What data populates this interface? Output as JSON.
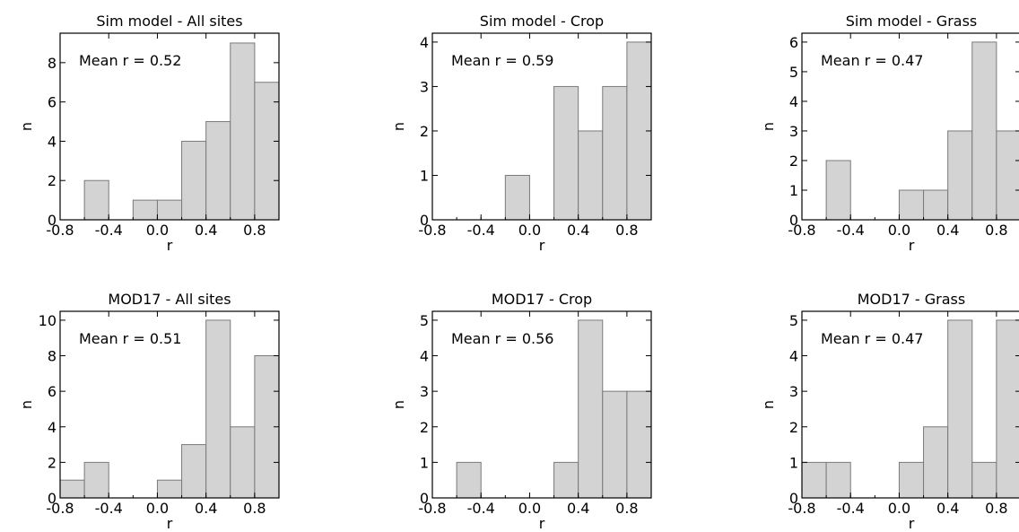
{
  "chart_data": [
    {
      "type": "bar",
      "title": "Sim model - All sites",
      "annotation": "Mean r = 0.52",
      "xlabel": "r",
      "ylabel": "n",
      "xlim": [
        -0.8,
        1.0
      ],
      "ylim": [
        0,
        9.5
      ],
      "xticks": [
        "-0.8",
        "-0.4",
        "0.0",
        "0.4",
        "0.8"
      ],
      "yticks": [
        "0",
        "2",
        "4",
        "6",
        "8"
      ],
      "bin_edges": [
        -0.8,
        -0.6,
        -0.4,
        -0.2,
        0.0,
        0.2,
        0.4,
        0.6,
        0.8,
        1.0
      ],
      "values": [
        0,
        2,
        0,
        1,
        1,
        4,
        5,
        9,
        7
      ],
      "bar_color": "#d3d3d3"
    },
    {
      "type": "bar",
      "title": "Sim model - Crop",
      "annotation": "Mean r = 0.59",
      "xlabel": "r",
      "ylabel": "n",
      "xlim": [
        -0.8,
        1.0
      ],
      "ylim": [
        0,
        4.2
      ],
      "xticks": [
        "-0.8",
        "-0.4",
        "0.0",
        "0.4",
        "0.8"
      ],
      "yticks": [
        "0",
        "1",
        "2",
        "3",
        "4"
      ],
      "bin_edges": [
        -0.8,
        -0.6,
        -0.4,
        -0.2,
        0.0,
        0.2,
        0.4,
        0.6,
        0.8,
        1.0
      ],
      "values": [
        0,
        0,
        0,
        1,
        0,
        3,
        2,
        3,
        4
      ],
      "bar_color": "#d3d3d3"
    },
    {
      "type": "bar",
      "title": "Sim model - Grass",
      "annotation": "Mean r = 0.47",
      "xlabel": "r",
      "ylabel": "n",
      "xlim": [
        -0.8,
        1.0
      ],
      "ylim": [
        0,
        6.3
      ],
      "xticks": [
        "-0.8",
        "-0.4",
        "0.0",
        "0.4",
        "0.8"
      ],
      "yticks": [
        "0",
        "1",
        "2",
        "3",
        "4",
        "5",
        "6"
      ],
      "bin_edges": [
        -0.8,
        -0.6,
        -0.4,
        -0.2,
        0.0,
        0.2,
        0.4,
        0.6,
        0.8,
        1.0
      ],
      "values": [
        0,
        2,
        0,
        0,
        1,
        1,
        3,
        6,
        3
      ],
      "bar_color": "#d3d3d3"
    },
    {
      "type": "bar",
      "title": "MOD17 - All sites",
      "annotation": "Mean r = 0.51",
      "xlabel": "r",
      "ylabel": "n",
      "xlim": [
        -0.8,
        1.0
      ],
      "ylim": [
        0,
        10.5
      ],
      "xticks": [
        "-0.8",
        "-0.4",
        "0.0",
        "0.4",
        "0.8"
      ],
      "yticks": [
        "0",
        "2",
        "4",
        "6",
        "8",
        "10"
      ],
      "bin_edges": [
        -0.8,
        -0.6,
        -0.4,
        -0.2,
        0.0,
        0.2,
        0.4,
        0.6,
        0.8,
        1.0
      ],
      "values": [
        1,
        2,
        0,
        0,
        1,
        3,
        10,
        4,
        8
      ],
      "bar_color": "#d3d3d3"
    },
    {
      "type": "bar",
      "title": "MOD17 - Crop",
      "annotation": "Mean r = 0.56",
      "xlabel": "r",
      "ylabel": "n",
      "xlim": [
        -0.8,
        1.0
      ],
      "ylim": [
        0,
        5.25
      ],
      "xticks": [
        "-0.8",
        "-0.4",
        "0.0",
        "0.4",
        "0.8"
      ],
      "yticks": [
        "0",
        "1",
        "2",
        "3",
        "4",
        "5"
      ],
      "bin_edges": [
        -0.8,
        -0.6,
        -0.4,
        -0.2,
        0.0,
        0.2,
        0.4,
        0.6,
        0.8,
        1.0
      ],
      "values": [
        0,
        1,
        0,
        0,
        0,
        1,
        5,
        3,
        3
      ],
      "bar_color": "#d3d3d3"
    },
    {
      "type": "bar",
      "title": "MOD17 - Grass",
      "annotation": "Mean r = 0.47",
      "xlabel": "r",
      "ylabel": "n",
      "xlim": [
        -0.8,
        1.0
      ],
      "ylim": [
        0,
        5.25
      ],
      "xticks": [
        "-0.8",
        "-0.4",
        "0.0",
        "0.4",
        "0.8"
      ],
      "yticks": [
        "0",
        "1",
        "2",
        "3",
        "4",
        "5"
      ],
      "bin_edges": [
        -0.8,
        -0.6,
        -0.4,
        -0.2,
        0.0,
        0.2,
        0.4,
        0.6,
        0.8,
        1.0
      ],
      "values": [
        1,
        1,
        0,
        0,
        1,
        2,
        5,
        1,
        5
      ],
      "bar_color": "#d3d3d3"
    }
  ]
}
